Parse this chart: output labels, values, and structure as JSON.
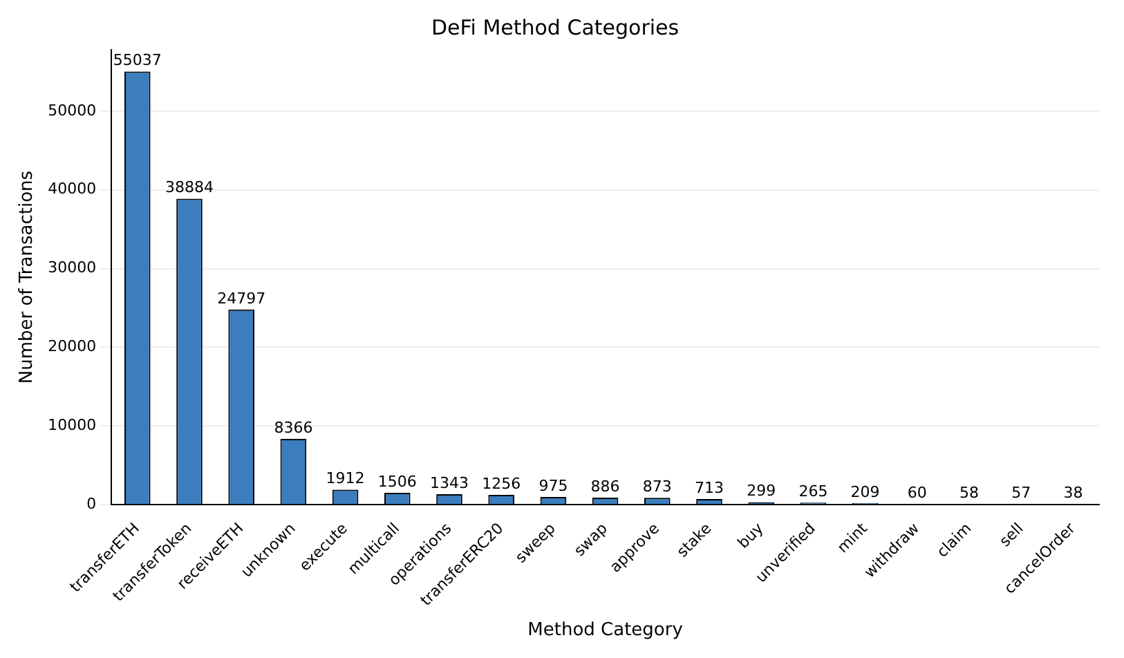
{
  "chart_data": {
    "type": "bar",
    "title": "DeFi Method Categories",
    "xlabel": "Method Category",
    "ylabel": "Number of Transactions",
    "categories": [
      "transferETH",
      "transferToken",
      "receiveETH",
      "unknown",
      "execute",
      "multicall",
      "operations",
      "transferERC20",
      "sweep",
      "swap",
      "approve",
      "stake",
      "buy",
      "unverified",
      "mint",
      "withdraw",
      "claim",
      "sell",
      "cancelOrder"
    ],
    "values": [
      55037,
      38884,
      24797,
      8366,
      1912,
      1506,
      1343,
      1256,
      975,
      886,
      873,
      713,
      299,
      265,
      209,
      60,
      58,
      57,
      38
    ],
    "color": "#3b7dbd",
    "ylim": [
      0,
      57800
    ],
    "yticks": [
      0,
      10000,
      20000,
      30000,
      40000,
      50000
    ],
    "grid": "y",
    "data_labels": true
  }
}
